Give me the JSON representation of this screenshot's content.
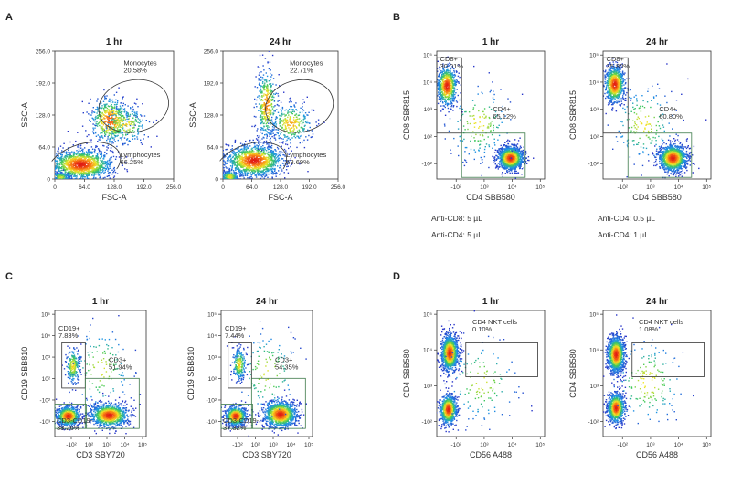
{
  "panels": [
    {
      "id": "A",
      "letter": "A"
    },
    {
      "id": "B",
      "letter": "B"
    },
    {
      "id": "C",
      "letter": "C"
    },
    {
      "id": "D",
      "letter": "D"
    }
  ],
  "chart_data": [
    {
      "type": "scatter",
      "panel": "A",
      "title": "1 hr",
      "xlabel": "FSC-A",
      "ylabel": "SSC-A",
      "xlim": [
        0,
        256
      ],
      "ylim": [
        0,
        256
      ],
      "xscale": "linear",
      "yscale": "linear",
      "xticks": [
        "0",
        "64.0",
        "128.0",
        "192.0",
        "256.0"
      ],
      "yticks": [
        "0",
        "64.0",
        "128.0",
        "192.0",
        "256.0"
      ],
      "gates": [
        {
          "name": "Monocytes",
          "percent": "20.58%",
          "shape": "ellipse",
          "center": [
            170,
            146
          ],
          "radius": [
            76,
            52
          ],
          "rotation": -12
        },
        {
          "name": "Lymphocytes",
          "percent": "66.25%",
          "shape": "ellipse",
          "center": [
            62,
            26
          ],
          "radius": [
            82,
            44
          ],
          "rotation": -18
        }
      ],
      "populations": [
        {
          "center": [
            55,
            30
          ],
          "spread": [
            34,
            15
          ],
          "weight": 0.62
        },
        {
          "center": [
            118,
            118
          ],
          "spread": [
            22,
            24
          ],
          "weight": 0.22
        },
        {
          "center": [
            150,
            110
          ],
          "spread": [
            26,
            20
          ],
          "weight": 0.1
        },
        {
          "center": [
            12,
            5
          ],
          "spread": [
            10,
            5
          ],
          "weight": 0.06
        }
      ]
    },
    {
      "type": "scatter",
      "panel": "A",
      "title": "24 hr",
      "xlabel": "FSC-A",
      "ylabel": "SSC-A",
      "xlim": [
        0,
        256
      ],
      "ylim": [
        0,
        256
      ],
      "xscale": "linear",
      "yscale": "linear",
      "xticks": [
        "0",
        "64.0",
        "128.0",
        "192.0",
        "256.0"
      ],
      "yticks": [
        "0",
        "64.0",
        "128.0",
        "192.0",
        "256.0"
      ],
      "gates": [
        {
          "name": "Monocytes",
          "percent": "22.71%",
          "shape": "ellipse",
          "center": [
            170,
            146
          ],
          "radius": [
            76,
            52
          ],
          "rotation": -12
        },
        {
          "name": "Lymphocytes",
          "percent": "68.69%",
          "shape": "ellipse",
          "center": [
            62,
            26
          ],
          "radius": [
            82,
            44
          ],
          "rotation": -18
        }
      ],
      "populations": [
        {
          "center": [
            68,
            38
          ],
          "spread": [
            32,
            16
          ],
          "weight": 0.58
        },
        {
          "center": [
            96,
            150
          ],
          "spread": [
            12,
            36
          ],
          "weight": 0.18
        },
        {
          "center": [
            150,
            112
          ],
          "spread": [
            24,
            20
          ],
          "weight": 0.14
        },
        {
          "center": [
            14,
            6
          ],
          "spread": [
            10,
            6
          ],
          "weight": 0.1
        }
      ]
    },
    {
      "type": "scatter",
      "panel": "B",
      "title": "1 hr",
      "xlabel": "CD4 SBB580",
      "ylabel": "CD8 SBR815",
      "xscale": "biexponential",
      "yscale": "biexponential",
      "xlim": [
        -2.4,
        5.4
      ],
      "ylim": [
        -2.4,
        5.4
      ],
      "xticks": [
        "-10²",
        "10³",
        "10⁴",
        "10⁵"
      ],
      "yticks": [
        "-10²",
        "10²",
        "10³",
        "10⁴",
        "10⁵"
      ],
      "gates": [
        {
          "name": "CD8+",
          "percent": "30.01%",
          "shape": "rect",
          "x": [
            -3.1,
            -0.6
          ],
          "y": [
            0.4,
            5.0
          ]
        },
        {
          "name": "CD4+",
          "percent": "65.12%",
          "shape": "rect",
          "x": [
            -0.6,
            4.0
          ],
          "y": [
            -2.3,
            0.4
          ]
        }
      ],
      "populations": [
        {
          "center": [
            -1.7,
            3.3
          ],
          "spread": [
            0.35,
            0.6
          ],
          "weight": 0.3
        },
        {
          "center": [
            2.9,
            -1.1
          ],
          "spread": [
            0.45,
            0.35
          ],
          "weight": 0.62
        },
        {
          "center": [
            0.6,
            1.0
          ],
          "spread": [
            1.2,
            1.2
          ],
          "weight": 0.08
        }
      ],
      "notes": [
        "Anti-CD8: 5 µL",
        "Anti-CD4: 5 µL"
      ]
    },
    {
      "type": "scatter",
      "panel": "B",
      "title": "24 hr",
      "xlabel": "CD4 SBB580",
      "ylabel": "CD8 SBR815",
      "xscale": "biexponential",
      "yscale": "biexponential",
      "xlim": [
        -2.4,
        5.4
      ],
      "ylim": [
        -2.4,
        5.4
      ],
      "xticks": [
        "-10²",
        "10³",
        "10⁴",
        "10⁵"
      ],
      "yticks": [
        "-10²",
        "10²",
        "10³",
        "10⁴",
        "10⁵"
      ],
      "gates": [
        {
          "name": "CD8+",
          "percent": "35.80%",
          "shape": "rect",
          "x": [
            -3.1,
            -0.6
          ],
          "y": [
            0.4,
            5.0
          ]
        },
        {
          "name": "CD4+",
          "percent": "60.80%",
          "shape": "rect",
          "x": [
            -0.6,
            4.0
          ],
          "y": [
            -2.3,
            0.4
          ]
        }
      ],
      "populations": [
        {
          "center": [
            -1.6,
            3.4
          ],
          "spread": [
            0.35,
            0.55
          ],
          "weight": 0.35
        },
        {
          "center": [
            2.6,
            -1.1
          ],
          "spread": [
            0.5,
            0.4
          ],
          "weight": 0.57
        },
        {
          "center": [
            0.5,
            1.0
          ],
          "spread": [
            1.2,
            1.2
          ],
          "weight": 0.08
        }
      ],
      "notes": [
        "Anti-CD4: 0.5 µL",
        "Anti-CD4: 1 µL"
      ]
    },
    {
      "type": "scatter",
      "panel": "C",
      "title": "1 hr",
      "xlabel": "CD3 SBY720",
      "ylabel": "CD19 SBB810",
      "xscale": "biexponential",
      "yscale": "biexponential",
      "xlim": [
        -2.4,
        5.4
      ],
      "ylim": [
        -2.4,
        5.4
      ],
      "xticks": [
        "-10²",
        "10²",
        "10³",
        "10⁴",
        "10⁵"
      ],
      "yticks": [
        "-10³",
        "-10²",
        "10²",
        "10³",
        "10⁴",
        "10⁵"
      ],
      "gates": [
        {
          "name": "CD19+",
          "percent": "7.83%",
          "shape": "rect",
          "x": [
            -1.8,
            0.2
          ],
          "y": [
            0.6,
            3.4
          ]
        },
        {
          "name": "CD3+",
          "percent": "51.94%",
          "shape": "rect",
          "x": [
            0.2,
            4.8
          ],
          "y": [
            -1.9,
            1.2
          ]
        },
        {
          "name": "CD3-CD19-",
          "percent": "38.26%",
          "shape": "rect",
          "x": [
            -2.4,
            0.3
          ],
          "y": [
            -1.9,
            -0.4
          ]
        }
      ],
      "populations": [
        {
          "center": [
            -0.9,
            2.0
          ],
          "spread": [
            0.3,
            0.55
          ],
          "weight": 0.1
        },
        {
          "center": [
            -1.3,
            -1.1
          ],
          "spread": [
            0.5,
            0.3
          ],
          "weight": 0.34
        },
        {
          "center": [
            2.2,
            -1.05
          ],
          "spread": [
            0.8,
            0.35
          ],
          "weight": 0.5
        },
        {
          "center": [
            1.5,
            1.8
          ],
          "spread": [
            1.4,
            1.4
          ],
          "weight": 0.06
        }
      ]
    },
    {
      "type": "scatter",
      "panel": "C",
      "title": "24 hr",
      "xlabel": "CD3 SBY720",
      "ylabel": "CD19 SBB810",
      "xscale": "biexponential",
      "yscale": "biexponential",
      "xlim": [
        -2.4,
        5.4
      ],
      "ylim": [
        -2.4,
        5.4
      ],
      "xticks": [
        "-10²",
        "10²",
        "10³",
        "10⁴",
        "10⁵"
      ],
      "yticks": [
        "-10³",
        "-10²",
        "10²",
        "10³",
        "10⁴",
        "10⁵"
      ],
      "gates": [
        {
          "name": "CD19+",
          "percent": "7.44%",
          "shape": "rect",
          "x": [
            -1.8,
            0.2
          ],
          "y": [
            0.6,
            3.4
          ]
        },
        {
          "name": "CD3+",
          "percent": "54.35%",
          "shape": "rect",
          "x": [
            0.2,
            4.8
          ],
          "y": [
            -1.9,
            1.2
          ]
        },
        {
          "name": "CD3-CD19-",
          "percent": "37.32%",
          "shape": "rect",
          "x": [
            -2.4,
            0.3
          ],
          "y": [
            -1.9,
            -0.4
          ]
        }
      ],
      "populations": [
        {
          "center": [
            -0.9,
            2.1
          ],
          "spread": [
            0.3,
            0.5
          ],
          "weight": 0.1
        },
        {
          "center": [
            -1.2,
            -1.1
          ],
          "spread": [
            0.45,
            0.3
          ],
          "weight": 0.32
        },
        {
          "center": [
            2.6,
            -1.0
          ],
          "spread": [
            0.7,
            0.4
          ],
          "weight": 0.52
        },
        {
          "center": [
            1.5,
            1.6
          ],
          "spread": [
            1.4,
            1.4
          ],
          "weight": 0.06
        }
      ]
    },
    {
      "type": "scatter",
      "panel": "D",
      "title": "1 hr",
      "xlabel": "CD56 A488",
      "ylabel": "CD4 SBB580",
      "xscale": "biexponential",
      "yscale": "biexponential",
      "xlim": [
        -2.4,
        5.4
      ],
      "ylim": [
        -2.4,
        5.4
      ],
      "xticks": [
        "-10²",
        "10³",
        "10⁴",
        "10⁵"
      ],
      "yticks": [
        "-10²",
        "10³",
        "10⁴",
        "10⁵"
      ],
      "gates": [
        {
          "name": "CD4 NKT cells",
          "percent": "0.10%",
          "shape": "rect",
          "x": [
            -0.3,
            4.9
          ],
          "y": [
            1.3,
            3.4
          ]
        }
      ],
      "populations": [
        {
          "center": [
            -1.5,
            2.8
          ],
          "spread": [
            0.3,
            0.55
          ],
          "weight": 0.58
        },
        {
          "center": [
            -1.6,
            -0.7
          ],
          "spread": [
            0.3,
            0.45
          ],
          "weight": 0.36
        },
        {
          "center": [
            0.8,
            1.0
          ],
          "spread": [
            1.4,
            1.4
          ],
          "weight": 0.06
        }
      ]
    },
    {
      "type": "scatter",
      "panel": "D",
      "title": "24 hr",
      "xlabel": "CD56 A488",
      "ylabel": "CD4 SBB580",
      "xscale": "biexponential",
      "yscale": "biexponential",
      "xlim": [
        -2.4,
        5.4
      ],
      "ylim": [
        -2.4,
        5.4
      ],
      "xticks": [
        "-10²",
        "10³",
        "10⁴",
        "10⁵"
      ],
      "yticks": [
        "-10²",
        "10³",
        "10⁴",
        "10⁵"
      ],
      "gates": [
        {
          "name": "CD4 NKT cells",
          "percent": "1.08%",
          "shape": "rect",
          "x": [
            -0.3,
            4.9
          ],
          "y": [
            1.3,
            3.4
          ]
        }
      ],
      "populations": [
        {
          "center": [
            -1.5,
            2.7
          ],
          "spread": [
            0.3,
            0.55
          ],
          "weight": 0.56
        },
        {
          "center": [
            -1.5,
            -0.6
          ],
          "spread": [
            0.3,
            0.45
          ],
          "weight": 0.36
        },
        {
          "center": [
            0.8,
            1.0
          ],
          "spread": [
            1.4,
            1.4
          ],
          "weight": 0.08
        }
      ]
    }
  ]
}
